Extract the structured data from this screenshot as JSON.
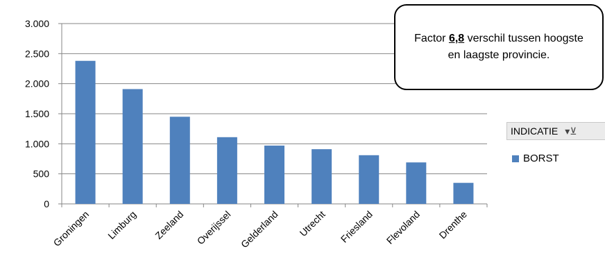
{
  "chart_data": {
    "type": "bar",
    "categories": [
      "Groningen",
      "Limburg",
      "Zeeland",
      "Overijssel",
      "Gelderland",
      "Utrecht",
      "Friesland",
      "Flevoland",
      "Drenthe"
    ],
    "series": [
      {
        "name": "BORST",
        "values": [
          2380,
          1910,
          1450,
          1110,
          970,
          910,
          810,
          690,
          350
        ]
      }
    ],
    "ylim": [
      0,
      3000
    ],
    "yticks": [
      0,
      500,
      1000,
      1500,
      2000,
      2500,
      3000
    ],
    "ytick_labels": [
      "0",
      "500",
      "1.000",
      "1.500",
      "2.000",
      "2.500",
      "3.000"
    ],
    "grid": true,
    "legend_position": "right",
    "bar_color": "#4F81BD"
  },
  "callout": {
    "prefix": "Factor ",
    "highlight": "6,8",
    "suffix": " verschil tussen hoogste en laagste provincie."
  },
  "filter": {
    "label": "INDICATIE",
    "icon": "filter-dropdown-icon"
  },
  "legend": {
    "label": "BORST"
  }
}
